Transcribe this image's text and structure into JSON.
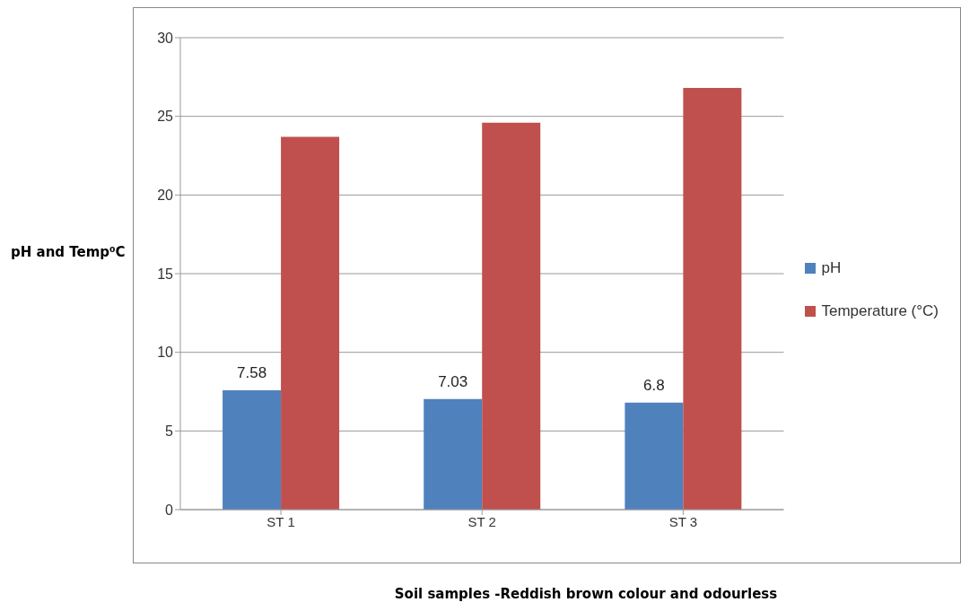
{
  "chart_data": {
    "type": "bar",
    "xlabel": "Soil samples -Reddish brown colour and odourless",
    "ylabel": "pH and Temp⁰C",
    "categories": [
      "ST 1",
      "ST 2",
      "ST 3"
    ],
    "series": [
      {
        "name": "pH",
        "color": "#4f81bd",
        "values": [
          7.58,
          7.03,
          6.8
        ],
        "value_labels": [
          "7.58",
          "7.03",
          "6.8"
        ]
      },
      {
        "name": "Temperature (°C)",
        "color": "#c0504d",
        "values": [
          23.7,
          24.6,
          26.8
        ]
      }
    ],
    "ylim": [
      0,
      30
    ],
    "yticks": [
      0,
      5,
      10,
      15,
      20,
      25,
      30
    ],
    "grid": "y",
    "legend": "right"
  }
}
